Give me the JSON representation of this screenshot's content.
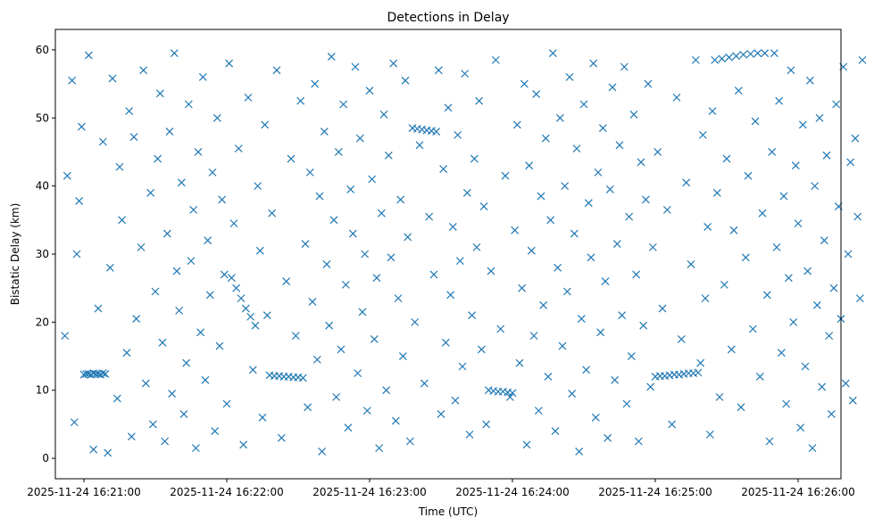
{
  "chart_data": {
    "type": "scatter",
    "title": "Detections in Delay",
    "xlabel": "Time (UTC)",
    "ylabel": "Bistatic Delay (km)",
    "marker": "x",
    "marker_color": "#1f77b4",
    "x_range": [
      "2025-11-24 16:20:48",
      "2025-11-24 16:26:18"
    ],
    "ylim": [
      -3,
      63
    ],
    "x_ticks": [
      "2025-11-24 16:21:00",
      "2025-11-24 16:22:00",
      "2025-11-24 16:23:00",
      "2025-11-24 16:24:00",
      "2025-11-24 16:25:00",
      "2025-11-24 16:26:00"
    ],
    "y_ticks": [
      "0",
      "10",
      "20",
      "30",
      "40",
      "50",
      "60"
    ],
    "grid": false,
    "legend": "none",
    "x_seconds_from": "2025-11-24 16:21:00",
    "tracks": [
      {
        "t_start": 0,
        "t_end": 10,
        "delay_start": 12.4,
        "delay_end": 12.4
      },
      {
        "t_start": 62,
        "t_end": 72,
        "delay_start": 26.5,
        "delay_end": 19.5
      },
      {
        "t_start": 78,
        "t_end": 92,
        "delay_start": 12.2,
        "delay_end": 11.8
      },
      {
        "t_start": 138,
        "t_end": 148,
        "delay_start": 48.5,
        "delay_end": 48.0
      },
      {
        "t_start": 170,
        "t_end": 180,
        "delay_start": 10.0,
        "delay_end": 9.6
      },
      {
        "t_start": 240,
        "t_end": 258,
        "delay_start": 12.0,
        "delay_end": 12.6
      },
      {
        "t_start": 265,
        "t_end": 290,
        "delay_start": 58.5,
        "delay_end": 59.5
      }
    ],
    "points": [
      [
        0,
        12.3
      ],
      [
        1,
        12.4
      ],
      [
        2,
        12.4
      ],
      [
        3,
        12.3
      ],
      [
        4,
        12.5
      ],
      [
        5,
        12.4
      ],
      [
        6,
        12.4
      ],
      [
        7,
        12.3
      ],
      [
        8,
        12.5
      ],
      [
        9,
        12.4
      ],
      [
        62,
        26.5
      ],
      [
        64,
        25.0
      ],
      [
        66,
        23.5
      ],
      [
        68,
        22.0
      ],
      [
        70,
        20.8
      ],
      [
        72,
        19.5
      ],
      [
        78,
        12.2
      ],
      [
        80,
        12.1
      ],
      [
        82,
        12.1
      ],
      [
        84,
        12.0
      ],
      [
        86,
        12.0
      ],
      [
        88,
        11.9
      ],
      [
        90,
        11.9
      ],
      [
        92,
        11.8
      ],
      [
        138,
        48.5
      ],
      [
        140,
        48.4
      ],
      [
        142,
        48.3
      ],
      [
        144,
        48.2
      ],
      [
        146,
        48.1
      ],
      [
        148,
        48.0
      ],
      [
        170,
        10.0
      ],
      [
        172,
        9.9
      ],
      [
        174,
        9.8
      ],
      [
        176,
        9.8
      ],
      [
        178,
        9.7
      ],
      [
        180,
        9.6
      ],
      [
        240,
        12.0
      ],
      [
        242,
        12.1
      ],
      [
        244,
        12.1
      ],
      [
        246,
        12.2
      ],
      [
        248,
        12.3
      ],
      [
        250,
        12.3
      ],
      [
        252,
        12.4
      ],
      [
        254,
        12.5
      ],
      [
        256,
        12.5
      ],
      [
        258,
        12.6
      ],
      [
        265,
        58.5
      ],
      [
        268,
        58.7
      ],
      [
        271,
        58.9
      ],
      [
        274,
        59.1
      ],
      [
        277,
        59.3
      ],
      [
        280,
        59.4
      ],
      [
        283,
        59.5
      ],
      [
        286,
        59.5
      ],
      [
        290,
        59.5
      ],
      [
        -8,
        18.0
      ],
      [
        -7,
        41.5
      ],
      [
        -5,
        55.5
      ],
      [
        -4,
        5.3
      ],
      [
        -3,
        30.0
      ],
      [
        -2,
        37.8
      ],
      [
        -1,
        48.7
      ],
      [
        2,
        59.2
      ],
      [
        4,
        1.3
      ],
      [
        6,
        22.0
      ],
      [
        8,
        46.5
      ],
      [
        10,
        0.8
      ],
      [
        11,
        28.0
      ],
      [
        12,
        55.8
      ],
      [
        14,
        8.8
      ],
      [
        15,
        42.8
      ],
      [
        16,
        35.0
      ],
      [
        18,
        15.5
      ],
      [
        19,
        51.0
      ],
      [
        20,
        3.2
      ],
      [
        21,
        47.2
      ],
      [
        22,
        20.5
      ],
      [
        24,
        31.0
      ],
      [
        25,
        57.0
      ],
      [
        26,
        11.0
      ],
      [
        28,
        39.0
      ],
      [
        29,
        5.0
      ],
      [
        30,
        24.5
      ],
      [
        31,
        44.0
      ],
      [
        32,
        53.6
      ],
      [
        33,
        17.0
      ],
      [
        34,
        2.5
      ],
      [
        35,
        33.0
      ],
      [
        36,
        48.0
      ],
      [
        37,
        9.5
      ],
      [
        38,
        59.5
      ],
      [
        39,
        27.5
      ],
      [
        40,
        21.7
      ],
      [
        41,
        40.5
      ],
      [
        42,
        6.5
      ],
      [
        43,
        14.0
      ],
      [
        44,
        52.0
      ],
      [
        45,
        29.0
      ],
      [
        46,
        36.5
      ],
      [
        47,
        1.5
      ],
      [
        48,
        45.0
      ],
      [
        49,
        18.5
      ],
      [
        50,
        56.0
      ],
      [
        51,
        11.5
      ],
      [
        52,
        32.0
      ],
      [
        53,
        24.0
      ],
      [
        54,
        42.0
      ],
      [
        55,
        4.0
      ],
      [
        56,
        50.0
      ],
      [
        57,
        16.5
      ],
      [
        58,
        38.0
      ],
      [
        59,
        27.0
      ],
      [
        60,
        8.0
      ],
      [
        61,
        58.0
      ],
      [
        63,
        34.5
      ],
      [
        65,
        45.5
      ],
      [
        67,
        2.0
      ],
      [
        69,
        53.0
      ],
      [
        71,
        13.0
      ],
      [
        73,
        40.0
      ],
      [
        74,
        30.5
      ],
      [
        75,
        6.0
      ],
      [
        76,
        49.0
      ],
      [
        77,
        21.0
      ],
      [
        79,
        36.0
      ],
      [
        81,
        57.0
      ],
      [
        83,
        3.0
      ],
      [
        85,
        26.0
      ],
      [
        87,
        44.0
      ],
      [
        89,
        18.0
      ],
      [
        91,
        52.5
      ],
      [
        93,
        31.5
      ],
      [
        94,
        7.5
      ],
      [
        95,
        42.0
      ],
      [
        96,
        23.0
      ],
      [
        97,
        55.0
      ],
      [
        98,
        14.5
      ],
      [
        99,
        38.5
      ],
      [
        100,
        1.0
      ],
      [
        101,
        48.0
      ],
      [
        102,
        28.5
      ],
      [
        103,
        19.5
      ],
      [
        104,
        59.0
      ],
      [
        105,
        35.0
      ],
      [
        106,
        9.0
      ],
      [
        107,
        45.0
      ],
      [
        108,
        16.0
      ],
      [
        109,
        52.0
      ],
      [
        110,
        25.5
      ],
      [
        111,
        4.5
      ],
      [
        112,
        39.5
      ],
      [
        113,
        33.0
      ],
      [
        114,
        57.5
      ],
      [
        115,
        12.5
      ],
      [
        116,
        47.0
      ],
      [
        117,
        21.5
      ],
      [
        118,
        30.0
      ],
      [
        119,
        7.0
      ],
      [
        120,
        54.0
      ],
      [
        121,
        41.0
      ],
      [
        122,
        17.5
      ],
      [
        123,
        26.5
      ],
      [
        124,
        1.5
      ],
      [
        125,
        36.0
      ],
      [
        126,
        50.5
      ],
      [
        127,
        10.0
      ],
      [
        128,
        44.5
      ],
      [
        129,
        29.5
      ],
      [
        130,
        58.0
      ],
      [
        131,
        5.5
      ],
      [
        132,
        23.5
      ],
      [
        133,
        38.0
      ],
      [
        134,
        15.0
      ],
      [
        135,
        55.5
      ],
      [
        136,
        32.5
      ],
      [
        137,
        2.5
      ],
      [
        139,
        20.0
      ],
      [
        141,
        46.0
      ],
      [
        143,
        11.0
      ],
      [
        145,
        35.5
      ],
      [
        147,
        27.0
      ],
      [
        149,
        57.0
      ],
      [
        150,
        6.5
      ],
      [
        151,
        42.5
      ],
      [
        152,
        17.0
      ],
      [
        153,
        51.5
      ],
      [
        154,
        24.0
      ],
      [
        155,
        34.0
      ],
      [
        156,
        8.5
      ],
      [
        157,
        47.5
      ],
      [
        158,
        29.0
      ],
      [
        159,
        13.5
      ],
      [
        160,
        56.5
      ],
      [
        161,
        39.0
      ],
      [
        162,
        3.5
      ],
      [
        163,
        21.0
      ],
      [
        164,
        44.0
      ],
      [
        165,
        31.0
      ],
      [
        166,
        52.5
      ],
      [
        167,
        16.0
      ],
      [
        168,
        37.0
      ],
      [
        169,
        5.0
      ],
      [
        171,
        27.5
      ],
      [
        173,
        58.5
      ],
      [
        175,
        19.0
      ],
      [
        177,
        41.5
      ],
      [
        179,
        9.0
      ],
      [
        181,
        33.5
      ],
      [
        182,
        49.0
      ],
      [
        183,
        14.0
      ],
      [
        184,
        25.0
      ],
      [
        185,
        55.0
      ],
      [
        186,
        2.0
      ],
      [
        187,
        43.0
      ],
      [
        188,
        30.5
      ],
      [
        189,
        18.0
      ],
      [
        190,
        53.5
      ],
      [
        191,
        7.0
      ],
      [
        192,
        38.5
      ],
      [
        193,
        22.5
      ],
      [
        194,
        47.0
      ],
      [
        195,
        12.0
      ],
      [
        196,
        35.0
      ],
      [
        197,
        59.5
      ],
      [
        198,
        4.0
      ],
      [
        199,
        28.0
      ],
      [
        200,
        50.0
      ],
      [
        201,
        16.5
      ],
      [
        202,
        40.0
      ],
      [
        203,
        24.5
      ],
      [
        204,
        56.0
      ],
      [
        205,
        9.5
      ],
      [
        206,
        33.0
      ],
      [
        207,
        45.5
      ],
      [
        208,
        1.0
      ],
      [
        209,
        20.5
      ],
      [
        210,
        52.0
      ],
      [
        211,
        13.0
      ],
      [
        212,
        37.5
      ],
      [
        213,
        29.5
      ],
      [
        214,
        58.0
      ],
      [
        215,
        6.0
      ],
      [
        216,
        42.0
      ],
      [
        217,
        18.5
      ],
      [
        218,
        48.5
      ],
      [
        219,
        26.0
      ],
      [
        220,
        3.0
      ],
      [
        221,
        39.5
      ],
      [
        222,
        54.5
      ],
      [
        223,
        11.5
      ],
      [
        224,
        31.5
      ],
      [
        225,
        46.0
      ],
      [
        226,
        21.0
      ],
      [
        227,
        57.5
      ],
      [
        228,
        8.0
      ],
      [
        229,
        35.5
      ],
      [
        230,
        15.0
      ],
      [
        231,
        50.5
      ],
      [
        232,
        27.0
      ],
      [
        233,
        2.5
      ],
      [
        234,
        43.5
      ],
      [
        235,
        19.5
      ],
      [
        236,
        38.0
      ],
      [
        237,
        55.0
      ],
      [
        238,
        10.5
      ],
      [
        239,
        31.0
      ],
      [
        241,
        45.0
      ],
      [
        243,
        22.0
      ],
      [
        245,
        36.5
      ],
      [
        247,
        5.0
      ],
      [
        249,
        53.0
      ],
      [
        251,
        17.5
      ],
      [
        253,
        40.5
      ],
      [
        255,
        28.5
      ],
      [
        257,
        58.5
      ],
      [
        259,
        14.0
      ],
      [
        260,
        47.5
      ],
      [
        261,
        23.5
      ],
      [
        262,
        34.0
      ],
      [
        263,
        3.5
      ],
      [
        264,
        51.0
      ],
      [
        266,
        39.0
      ],
      [
        267,
        9.0
      ],
      [
        269,
        25.5
      ],
      [
        270,
        44.0
      ],
      [
        272,
        16.0
      ],
      [
        273,
        33.5
      ],
      [
        275,
        54.0
      ],
      [
        276,
        7.5
      ],
      [
        278,
        29.5
      ],
      [
        279,
        41.5
      ],
      [
        281,
        19.0
      ],
      [
        282,
        49.5
      ],
      [
        284,
        12.0
      ],
      [
        285,
        36.0
      ],
      [
        287,
        24.0
      ],
      [
        288,
        2.5
      ],
      [
        289,
        45.0
      ],
      [
        291,
        31.0
      ],
      [
        292,
        52.5
      ],
      [
        293,
        15.5
      ],
      [
        294,
        38.5
      ],
      [
        295,
        8.0
      ],
      [
        296,
        26.5
      ],
      [
        297,
        57.0
      ],
      [
        298,
        20.0
      ],
      [
        299,
        43.0
      ],
      [
        300,
        34.5
      ],
      [
        301,
        4.5
      ],
      [
        302,
        49.0
      ],
      [
        303,
        13.5
      ],
      [
        304,
        27.5
      ],
      [
        305,
        55.5
      ],
      [
        306,
        1.5
      ],
      [
        307,
        40.0
      ],
      [
        308,
        22.5
      ],
      [
        309,
        50.0
      ],
      [
        310,
        10.5
      ],
      [
        311,
        32.0
      ],
      [
        312,
        44.5
      ],
      [
        313,
        18.0
      ],
      [
        314,
        6.5
      ],
      [
        315,
        25.0
      ],
      [
        316,
        52.0
      ],
      [
        317,
        37.0
      ],
      [
        318,
        20.5
      ],
      [
        319,
        57.5
      ],
      [
        320,
        11.0
      ],
      [
        321,
        30.0
      ],
      [
        322,
        43.5
      ],
      [
        323,
        8.5
      ],
      [
        324,
        47.0
      ],
      [
        325,
        35.5
      ],
      [
        326,
        23.5
      ],
      [
        327,
        58.5
      ]
    ]
  }
}
